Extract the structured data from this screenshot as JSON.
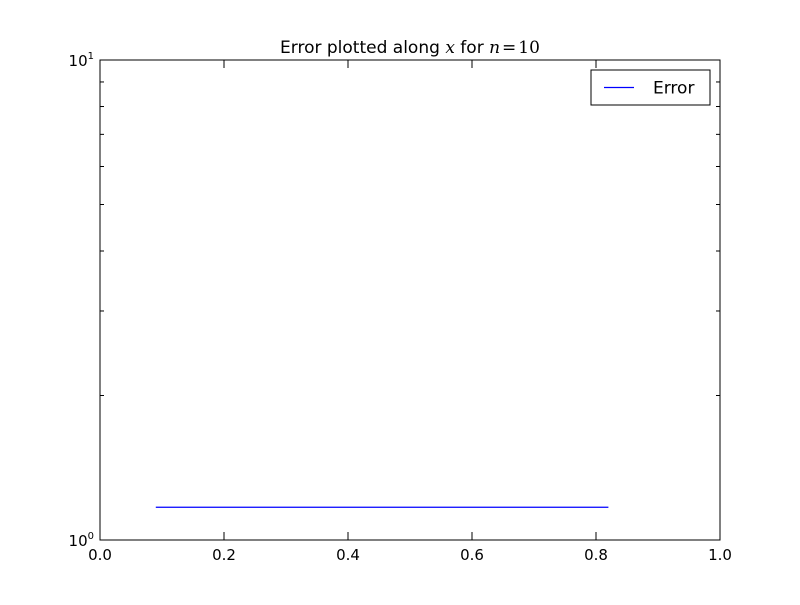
{
  "chart_data": {
    "type": "line",
    "title": {
      "prefix": "Error plotted along ",
      "var_x": "x",
      "middle": " for ",
      "var_n": "n",
      "equals": "=",
      "n_value": "10"
    },
    "xlabel": "",
    "ylabel": "",
    "xlim": [
      0.0,
      1.0
    ],
    "ylim": [
      1,
      10
    ],
    "yscale": "log",
    "x_ticks": [
      {
        "value": 0.0,
        "label": "0.0"
      },
      {
        "value": 0.2,
        "label": "0.2"
      },
      {
        "value": 0.4,
        "label": "0.4"
      },
      {
        "value": 0.6,
        "label": "0.6"
      },
      {
        "value": 0.8,
        "label": "0.8"
      },
      {
        "value": 1.0,
        "label": "1.0"
      }
    ],
    "y_major_ticks": [
      {
        "value": 1,
        "base": "10",
        "exp": "0"
      },
      {
        "value": 10,
        "base": "10",
        "exp": "1"
      }
    ],
    "y_minor_ticks": [
      2,
      3,
      4,
      5,
      6,
      7,
      8,
      9
    ],
    "grid": false,
    "legend": {
      "placement": "top-right",
      "entries": [
        "Error"
      ]
    },
    "series": [
      {
        "name": "Error",
        "color": "#0000ff",
        "x": [
          0.09,
          0.82
        ],
        "y": [
          1.17,
          1.17
        ]
      }
    ]
  }
}
